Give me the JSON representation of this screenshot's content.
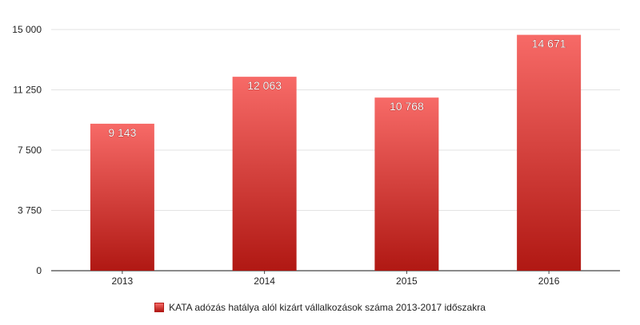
{
  "chart_data": {
    "type": "bar",
    "categories": [
      "2013",
      "2014",
      "2015",
      "2016"
    ],
    "series": [
      {
        "name": "KATA adózás hatálya alól kizárt vállalkozások száma 2013-2017 időszakra",
        "values": [
          9143,
          12063,
          10768,
          14671
        ],
        "value_labels": [
          "9 143",
          "12 063",
          "10 768",
          "14 671"
        ]
      }
    ],
    "ylim": [
      0,
      15000
    ],
    "yticks": [
      0,
      3750,
      7500,
      11250,
      15000
    ],
    "ytick_labels": [
      "0",
      "3 750",
      "7 500",
      "11 250",
      "15 000"
    ],
    "grid": true,
    "legend_position": "bottom",
    "colors": {
      "bar_top": "#f76a67",
      "bar_bottom": "#b01813",
      "grid": "#e3e3e3",
      "axis": "#444444"
    }
  }
}
